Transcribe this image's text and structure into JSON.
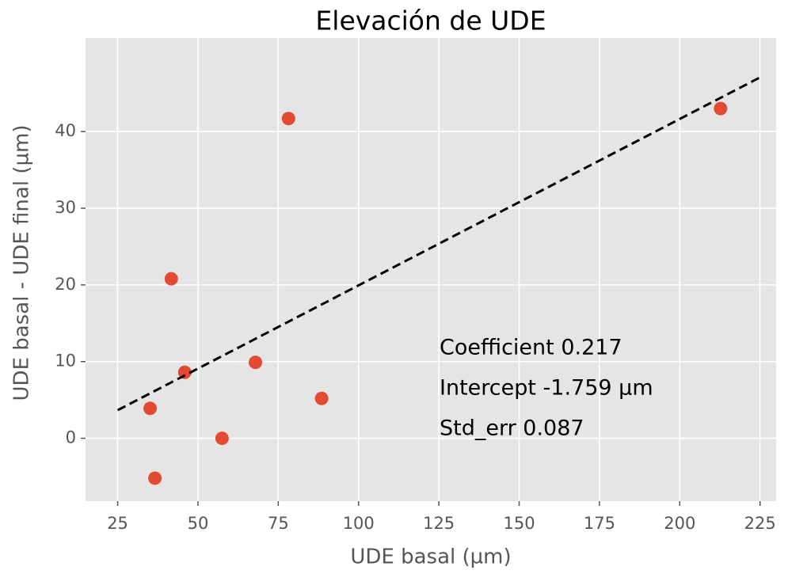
{
  "chart_data": {
    "type": "scatter",
    "title": "Elevación de UDE",
    "xlabel": "UDE basal (µm)",
    "ylabel": "UDE basal - UDE final (µm)",
    "series": [
      {
        "color": "#e24a33",
        "x": [
          35.1,
          36.6,
          41.7,
          45.9,
          57.5,
          67.9,
          78.2,
          88.5,
          212.7
        ],
        "values": [
          3.9,
          -5.2,
          20.8,
          8.6,
          0,
          9.9,
          41.7,
          5.2,
          43.0
        ]
      }
    ],
    "fit": {
      "color": "#000000",
      "dashed": true,
      "x": [
        25,
        225
      ],
      "values": [
        3.666,
        47.066
      ]
    },
    "annotations": [
      "Coefficient 0.217",
      "Intercept -1.759 µm",
      "Std_err 0.087"
    ],
    "xlim": [
      15,
      230
    ],
    "ylim": [
      -8.2,
      52.2
    ],
    "xticks": [
      25,
      50,
      75,
      100,
      125,
      150,
      175,
      200,
      225
    ],
    "yticks": [
      0,
      10,
      20,
      30,
      40
    ],
    "grid": true,
    "background": "#e5e5e5"
  }
}
